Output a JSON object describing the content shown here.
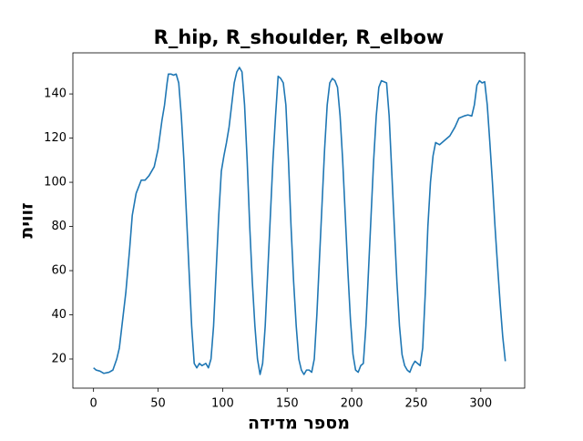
{
  "chart_data": {
    "type": "line",
    "title": "R_hip, R_shoulder, R_elbow",
    "x_label": "מספר מדידה",
    "y_label": "זווית",
    "x": [
      0,
      2,
      5,
      8,
      12,
      15,
      18,
      20,
      22,
      25,
      28,
      30,
      33,
      35,
      37,
      40,
      43,
      47,
      50,
      53,
      55,
      57,
      58,
      60,
      62,
      64,
      66,
      68,
      70,
      72,
      74,
      76,
      78,
      80,
      82,
      84,
      87,
      89,
      91,
      93,
      95,
      97,
      99,
      101,
      103,
      105,
      107,
      109,
      111,
      113,
      115,
      117,
      119,
      121,
      123,
      125,
      127,
      129,
      131,
      133,
      135,
      137,
      139,
      141,
      143,
      145,
      147,
      149,
      151,
      153,
      155,
      157,
      159,
      161,
      163,
      165,
      167,
      169,
      171,
      173,
      175,
      177,
      179,
      181,
      183,
      185,
      187,
      189,
      191,
      193,
      195,
      197,
      199,
      201,
      203,
      205,
      207,
      209,
      211,
      213,
      215,
      217,
      219,
      221,
      223,
      225,
      227,
      229,
      231,
      233,
      235,
      237,
      239,
      241,
      243,
      245,
      247,
      249,
      251,
      253,
      255,
      257,
      259,
      261,
      263,
      265,
      268,
      272,
      276,
      280,
      283,
      287,
      290,
      293,
      295,
      297,
      299,
      301,
      303,
      305,
      307,
      309,
      311,
      313,
      315,
      317,
      319
    ],
    "series": [
      {
        "color": "#1f77b4",
        "values": [
          16,
          15,
          14.5,
          13.5,
          14,
          15,
          20,
          25,
          35,
          50,
          70,
          85,
          95,
          98,
          101,
          101,
          103,
          107,
          115,
          128,
          135,
          145,
          149,
          149,
          148.5,
          149,
          145,
          130,
          110,
          85,
          60,
          35,
          18,
          16,
          18,
          17,
          18,
          16,
          20,
          35,
          60,
          85,
          105,
          112,
          118,
          125,
          135,
          145,
          150,
          152,
          150,
          135,
          110,
          80,
          55,
          35,
          20,
          13,
          18,
          35,
          60,
          85,
          110,
          130,
          148,
          147,
          145,
          135,
          110,
          80,
          55,
          35,
          20,
          15,
          13,
          15,
          15,
          14,
          20,
          40,
          65,
          90,
          115,
          135,
          145,
          147,
          146,
          143,
          130,
          110,
          85,
          60,
          38,
          22,
          15,
          14,
          17,
          18,
          35,
          60,
          85,
          110,
          130,
          143,
          146,
          145.5,
          145,
          130,
          105,
          80,
          55,
          35,
          22,
          17,
          15,
          14,
          17,
          19,
          18,
          17,
          25,
          50,
          80,
          100,
          112,
          118,
          117,
          119,
          121,
          125,
          129,
          130,
          130.5,
          130,
          135,
          144,
          146,
          145,
          145.5,
          135,
          118,
          100,
          80,
          62,
          45,
          30,
          19
        ]
      }
    ],
    "xlim": [
      -16,
      334
    ],
    "ylim": [
      6.8,
      158.6
    ],
    "xticks": [
      0,
      50,
      100,
      150,
      200,
      250,
      300
    ],
    "yticks": [
      20,
      40,
      60,
      80,
      100,
      120,
      140
    ]
  }
}
